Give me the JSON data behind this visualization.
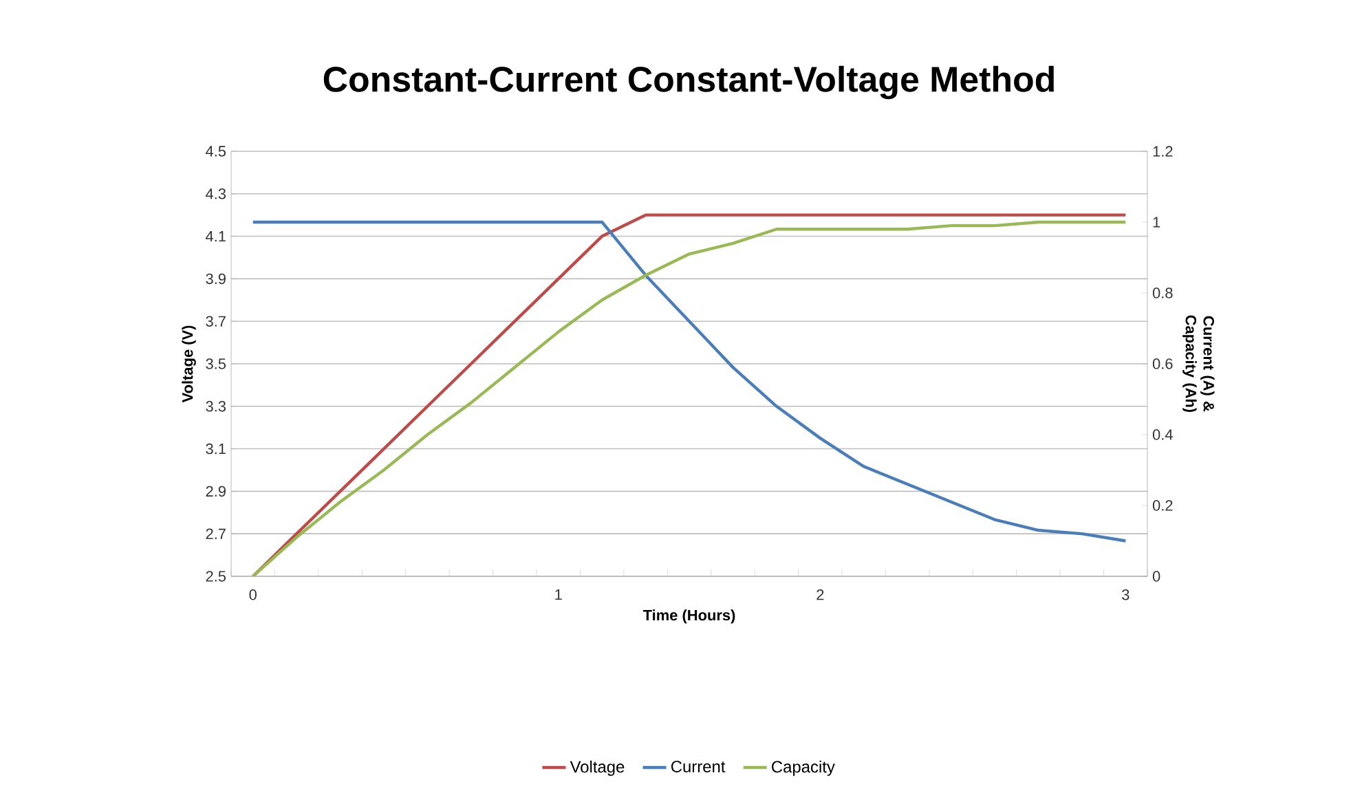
{
  "chart_data": {
    "type": "line",
    "title": "Constant-Current Constant-Voltage Method",
    "xlabel": "Time (Hours)",
    "ylabel": "Voltage (V)",
    "y2label": "Current (A) & Capacity (Ah)",
    "categories": [
      "0",
      null,
      null,
      null,
      null,
      null,
      null,
      "1",
      null,
      null,
      null,
      null,
      null,
      "2",
      null,
      null,
      null,
      null,
      null,
      null,
      "3"
    ],
    "series": [
      {
        "name": "Voltage",
        "color": "#be4b48",
        "values": [
          2.5,
          2.7,
          2.9,
          3.1,
          3.3,
          3.5,
          3.7,
          3.9,
          4.1,
          4.2,
          4.2,
          4.2,
          4.2,
          4.2,
          4.2,
          4.2,
          4.2,
          4.2,
          4.2,
          4.2,
          4.2
        ]
      },
      {
        "name": "Current",
        "color": "#4a7ebb",
        "axis": "y2",
        "values": [
          1.0,
          1.0,
          1.0,
          1.0,
          1.0,
          1.0,
          1.0,
          1.0,
          1.0,
          0.85,
          0.72,
          0.59,
          0.48,
          0.39,
          0.31,
          0.26,
          0.21,
          0.16,
          0.13,
          0.12,
          0.1
        ]
      },
      {
        "name": "Capacity",
        "color": "#98b954",
        "axis": "y2",
        "values": [
          0.0,
          0.11,
          0.21,
          0.3,
          0.4,
          0.49,
          0.59,
          0.69,
          0.78,
          0.85,
          0.91,
          0.94,
          0.98,
          0.98,
          0.98,
          0.98,
          0.99,
          0.99,
          1.0,
          1.0,
          1.0
        ]
      }
    ],
    "ylim": [
      2.5,
      4.5
    ],
    "yticks": [
      2.5,
      2.7,
      2.9,
      3.1,
      3.3,
      3.5,
      3.7,
      3.9,
      4.1,
      4.3,
      4.5
    ],
    "y2lim": [
      0,
      1.2
    ],
    "y2ticks": [
      0,
      0.2,
      0.4,
      0.6,
      0.8,
      1,
      1.2
    ],
    "grid": "y",
    "legend": "bottom",
    "marker": "none",
    "line_style": "solid"
  }
}
